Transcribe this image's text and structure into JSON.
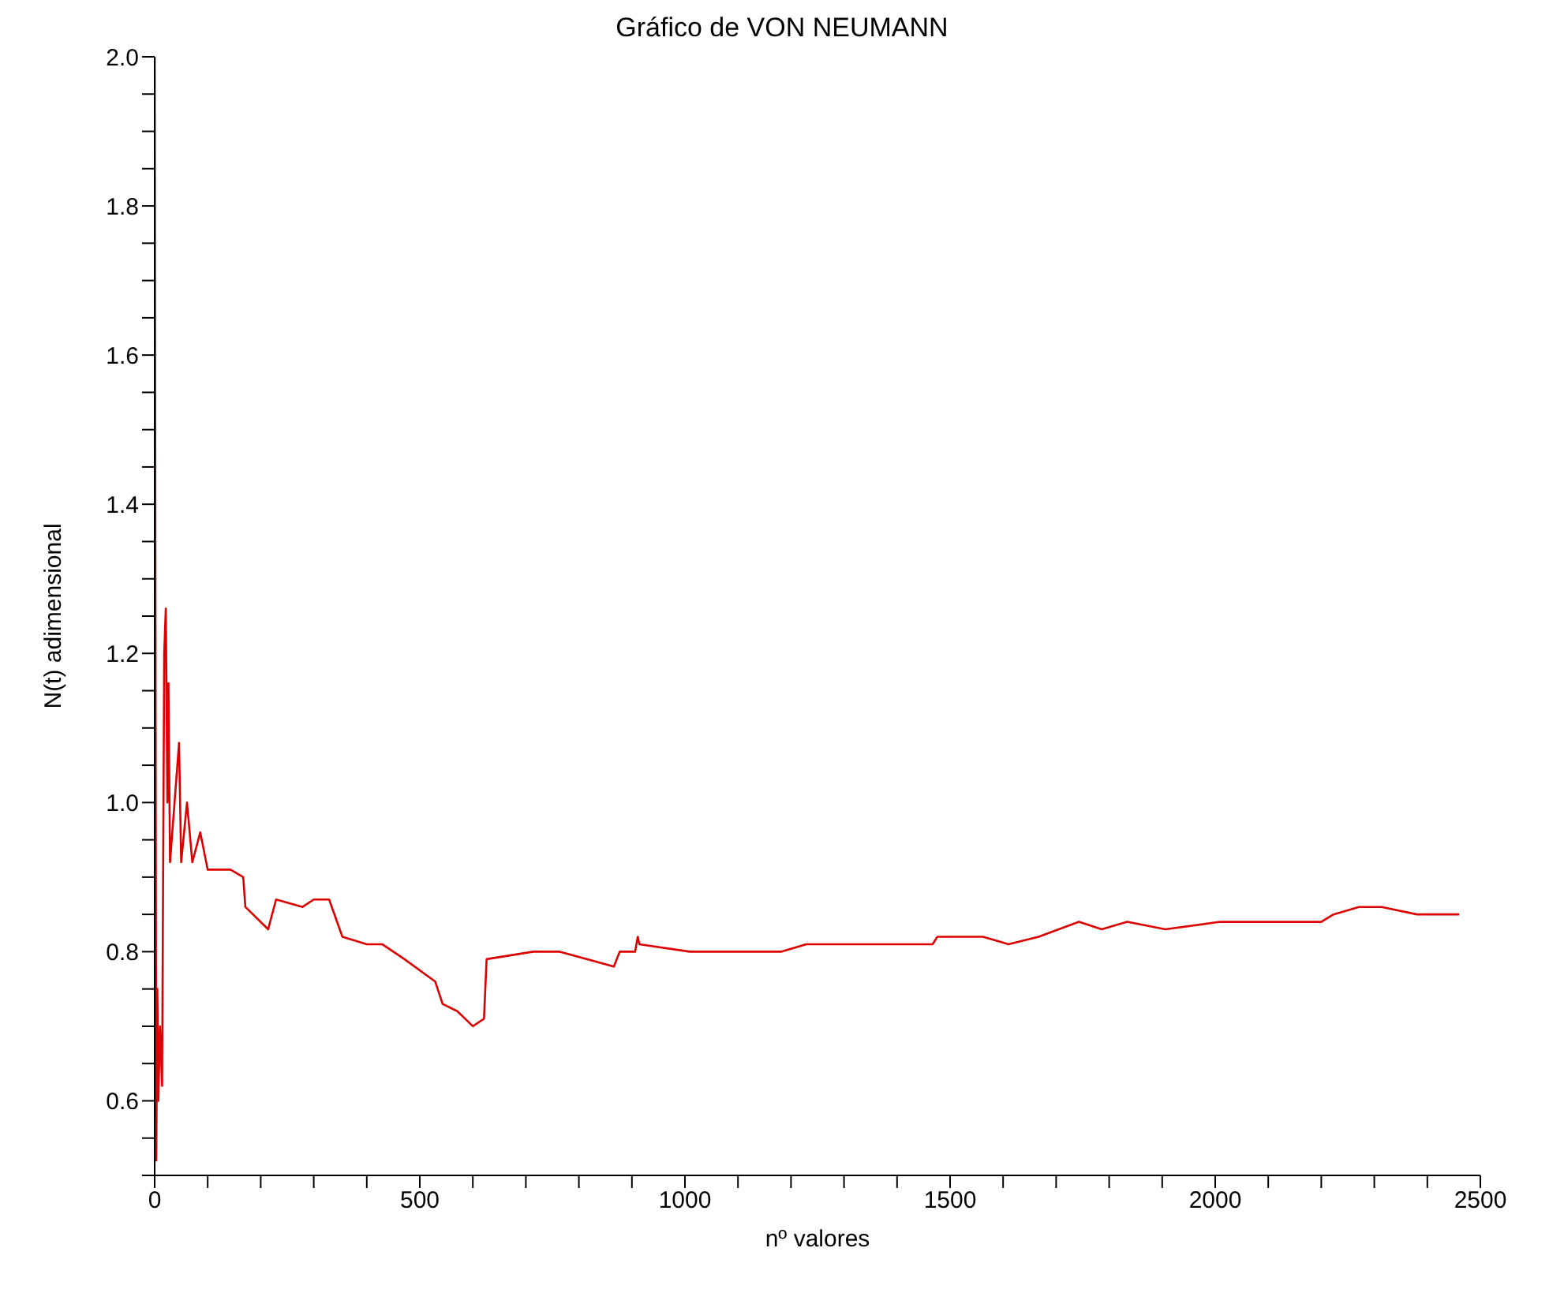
{
  "chart_data": {
    "type": "line",
    "title": "Gráfico de VON NEUMANN",
    "xlabel": "nº valores",
    "ylabel": "N(t) adimensional",
    "xlim": [
      0,
      2500
    ],
    "ylim": [
      0.5,
      2.0
    ],
    "xticks": [
      0,
      {
        "value": 100,
        "label": null
      },
      {
        "value": 200,
        "label": null
      },
      {
        "value": 300,
        "label": null
      },
      {
        "value": 400,
        "label": null
      },
      500,
      {
        "value": 600,
        "label": null
      },
      {
        "value": 700,
        "label": null
      },
      {
        "value": 800,
        "label": null
      },
      {
        "value": 900,
        "label": null
      },
      1000,
      {
        "value": 1100,
        "label": null
      },
      {
        "value": 1200,
        "label": null
      },
      {
        "value": 1300,
        "label": null
      },
      {
        "value": 1400,
        "label": null
      },
      1500,
      {
        "value": 1600,
        "label": null
      },
      {
        "value": 1700,
        "label": null
      },
      {
        "value": 1800,
        "label": null
      },
      {
        "value": 1900,
        "label": null
      },
      2000,
      {
        "value": 2100,
        "label": null
      },
      {
        "value": 2200,
        "label": null
      },
      {
        "value": 2300,
        "label": null
      },
      {
        "value": 2400,
        "label": null
      },
      2500
    ],
    "yticks": [
      {
        "value": 0.5,
        "label": null
      },
      {
        "value": 0.55,
        "label": null
      },
      {
        "value": 0.6,
        "label": "0.6"
      },
      {
        "value": 0.65,
        "label": null
      },
      {
        "value": 0.7,
        "label": null
      },
      {
        "value": 0.75,
        "label": null
      },
      {
        "value": 0.8,
        "label": "0.8"
      },
      {
        "value": 0.85,
        "label": null
      },
      {
        "value": 0.9,
        "label": null
      },
      {
        "value": 0.95,
        "label": null
      },
      {
        "value": 1.0,
        "label": "1.0"
      },
      {
        "value": 1.05,
        "label": null
      },
      {
        "value": 1.1,
        "label": null
      },
      {
        "value": 1.15,
        "label": null
      },
      {
        "value": 1.2,
        "label": "1.2"
      },
      {
        "value": 1.25,
        "label": null
      },
      {
        "value": 1.3,
        "label": null
      },
      {
        "value": 1.35,
        "label": null
      },
      {
        "value": 1.4,
        "label": "1.4"
      },
      {
        "value": 1.45,
        "label": null
      },
      {
        "value": 1.5,
        "label": null
      },
      {
        "value": 1.55,
        "label": null
      },
      {
        "value": 1.6,
        "label": "1.6"
      },
      {
        "value": 1.65,
        "label": null
      },
      {
        "value": 1.7,
        "label": null
      },
      {
        "value": 1.75,
        "label": null
      },
      {
        "value": 1.8,
        "label": "1.8"
      },
      {
        "value": 1.85,
        "label": null
      },
      {
        "value": 1.9,
        "label": null
      },
      {
        "value": 1.95,
        "label": null
      },
      {
        "value": 2.0,
        "label": "2.0"
      }
    ],
    "marker": "none",
    "line_style": "solid",
    "x": [
      0,
      3,
      5,
      7,
      10,
      14,
      18,
      21,
      24,
      26,
      29,
      46,
      50,
      61,
      71,
      86,
      100,
      143,
      167,
      171,
      214,
      229,
      279,
      300,
      329,
      354,
      400,
      429,
      471,
      529,
      543,
      571,
      600,
      621,
      626,
      714,
      764,
      866,
      877,
      906,
      911,
      914,
      1009,
      1105,
      1124,
      1181,
      1229,
      1295,
      1371,
      1391,
      1467,
      1476,
      1562,
      1610,
      1667,
      1743,
      1786,
      1834,
      1906,
      2009,
      2200,
      2223,
      2271,
      2314,
      2380,
      2460
    ],
    "series": [
      {
        "color": "#dd0000",
        "values": [
          2.0,
          0.52,
          0.75,
          0.6,
          0.7,
          0.62,
          1.2,
          1.26,
          1.0,
          1.16,
          0.92,
          1.08,
          0.92,
          1.0,
          0.92,
          0.96,
          0.91,
          0.91,
          0.9,
          0.86,
          0.83,
          0.87,
          0.86,
          0.87,
          0.87,
          0.82,
          0.81,
          0.81,
          0.79,
          0.76,
          0.73,
          0.72,
          0.7,
          0.71,
          0.79,
          0.8,
          0.8,
          0.78,
          0.8,
          0.8,
          0.82,
          0.81,
          0.8,
          0.8,
          0.8,
          0.8,
          0.81,
          0.81,
          0.81,
          0.81,
          0.81,
          0.82,
          0.82,
          0.81,
          0.82,
          0.84,
          0.83,
          0.84,
          0.83,
          0.84,
          0.84,
          0.85,
          0.86,
          0.86,
          0.85,
          0.85
        ]
      }
    ]
  }
}
